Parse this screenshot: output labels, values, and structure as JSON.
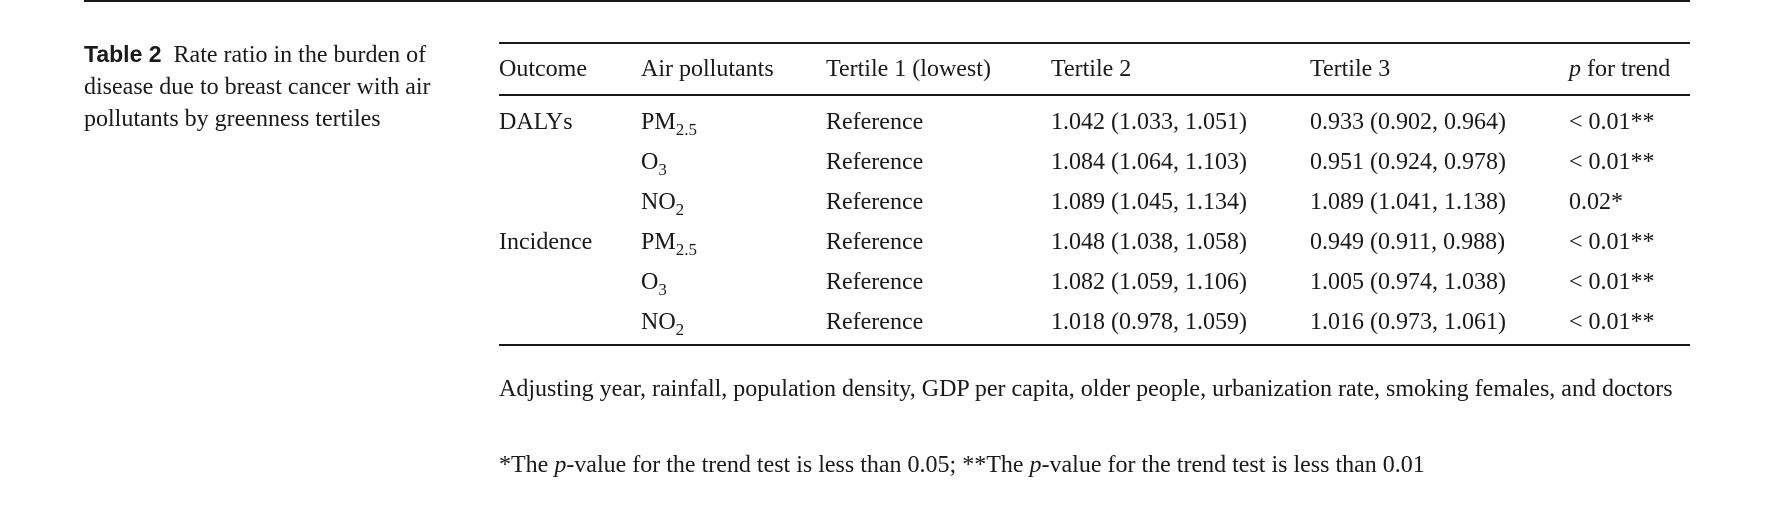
{
  "caption": {
    "label": "Table 2",
    "text": "Rate ratio in the burden of disease due to breast cancer with air pollutants by greenness tertiles"
  },
  "table": {
    "headers": {
      "outcome": "Outcome",
      "air_pollutants": "Air pollutants",
      "tertile1": "Tertile 1 (lowest)",
      "tertile2": "Tertile 2",
      "tertile3": "Tertile 3",
      "p_italic": "p",
      "p_rest": " for trend"
    },
    "rows": [
      {
        "outcome": "DALYs",
        "pollutant_base": "PM",
        "pollutant_sub": "2.5",
        "tertile1": "Reference",
        "tertile2": "1.042 (1.033, 1.051)",
        "tertile3": "0.933 (0.902, 0.964)",
        "p": "< 0.01**"
      },
      {
        "outcome": "",
        "pollutant_base": "O",
        "pollutant_sub": "3",
        "tertile1": "Reference",
        "tertile2": "1.084 (1.064, 1.103)",
        "tertile3": "0.951 (0.924, 0.978)",
        "p": "< 0.01**"
      },
      {
        "outcome": "",
        "pollutant_base": "NO",
        "pollutant_sub": "2",
        "tertile1": "Reference",
        "tertile2": "1.089 (1.045, 1.134)",
        "tertile3": "1.089 (1.041, 1.138)",
        "p": "0.02*"
      },
      {
        "outcome": "Incidence",
        "pollutant_base": "PM",
        "pollutant_sub": "2.5",
        "tertile1": "Reference",
        "tertile2": "1.048 (1.038, 1.058)",
        "tertile3": "0.949 (0.911, 0.988)",
        "p": "< 0.01**"
      },
      {
        "outcome": "",
        "pollutant_base": "O",
        "pollutant_sub": "3",
        "tertile1": "Reference",
        "tertile2": "1.082 (1.059, 1.106)",
        "tertile3": "1.005 (0.974, 1.038)",
        "p": "< 0.01**"
      },
      {
        "outcome": "",
        "pollutant_base": "NO",
        "pollutant_sub": "2",
        "tertile1": "Reference",
        "tertile2": "1.018 (0.978, 1.059)",
        "tertile3": "1.016 (0.973, 1.061)",
        "p": "< 0.01**"
      }
    ]
  },
  "notes": {
    "adjusting": "Adjusting year, rainfall, population density, GDP per capita, older people, urbanization rate, smoking females, and doctors",
    "significance": {
      "part1": "*The ",
      "p1": "p",
      "part2": "-value for the trend test is less than 0.05; **The ",
      "p2": "p",
      "part3": "-value for the trend test is less than 0.01"
    }
  }
}
